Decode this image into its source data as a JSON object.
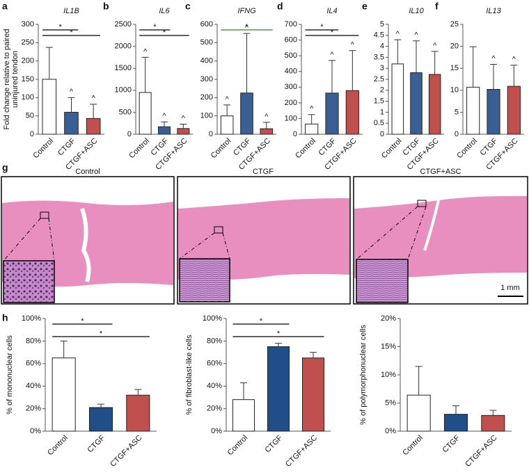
{
  "chart_data": [
    {
      "type": "bar",
      "panel": "a",
      "title": "IL1B",
      "ylabel": [
        "Fold change relative to paired",
        "uninjured tendon"
      ],
      "categories": [
        "Control",
        "CTGF",
        "CTGF+ASC"
      ],
      "values": [
        150,
        60,
        43
      ],
      "errors": [
        87,
        40,
        39
      ],
      "colors": [
        "#ffffff",
        "#3a5f94",
        "#c0504d"
      ],
      "markers": [
        null,
        "^",
        "^"
      ],
      "significance": [
        {
          "label": "*",
          "pair": [
            0,
            1
          ]
        },
        {
          "label": "*",
          "pair": [
            0,
            2
          ]
        }
      ],
      "ylim": [
        0,
        300
      ],
      "yticks": [
        0,
        50,
        100,
        150,
        200,
        250,
        300
      ]
    },
    {
      "type": "bar",
      "panel": "b",
      "title": "IL6",
      "categories": [
        "Control",
        "CTGF",
        "CTGF+ASC"
      ],
      "values": [
        950,
        170,
        130
      ],
      "errors": [
        800,
        110,
        100
      ],
      "colors": [
        "#ffffff",
        "#3a5f94",
        "#c0504d"
      ],
      "markers": [
        "^",
        "^",
        "^"
      ],
      "significance": [
        {
          "label": "*",
          "pair": [
            0,
            1
          ]
        },
        {
          "label": "*",
          "pair": [
            0,
            2
          ]
        }
      ],
      "ylim": [
        0,
        2500
      ],
      "yticks": [
        0,
        500,
        1000,
        1500,
        2000,
        2500
      ]
    },
    {
      "type": "bar",
      "panel": "c",
      "title": "IFNG",
      "categories": [
        "Control",
        "CTGF",
        "CTGF+ASC"
      ],
      "values": [
        100,
        225,
        30
      ],
      "errors": [
        60,
        325,
        35
      ],
      "colors": [
        "#ffffff",
        "#3a5f94",
        "#c0504d"
      ],
      "markers": [
        "^",
        "^",
        "^"
      ],
      "significance": [
        {
          "label": "*",
          "pair": [
            0,
            2
          ],
          "color": "#2e7d32"
        }
      ],
      "ylim": [
        0,
        600
      ],
      "yticks": [
        0,
        100,
        200,
        300,
        400,
        500,
        600
      ]
    },
    {
      "type": "bar",
      "panel": "d",
      "title": "IL4",
      "categories": [
        "Control",
        "CTGF",
        "CTGF+ASC"
      ],
      "values": [
        65,
        262,
        278
      ],
      "errors": [
        60,
        208,
        255
      ],
      "colors": [
        "#ffffff",
        "#3a5f94",
        "#c0504d"
      ],
      "markers": [
        "^",
        "^",
        "^"
      ],
      "significance": [
        {
          "label": "*",
          "pair": [
            0,
            1
          ]
        },
        {
          "label": "*",
          "pair": [
            0,
            2
          ]
        }
      ],
      "ylim": [
        0,
        700
      ],
      "yticks": [
        0,
        100,
        200,
        300,
        400,
        500,
        600,
        700
      ]
    },
    {
      "type": "bar",
      "panel": "e",
      "title": "IL10",
      "categories": [
        "Control",
        "CTGF",
        "CTGF+ASC"
      ],
      "values": [
        3.2,
        2.8,
        2.72
      ],
      "errors": [
        1.1,
        1.45,
        1.05
      ],
      "colors": [
        "#ffffff",
        "#3a5f94",
        "#c0504d"
      ],
      "markers": [
        "^",
        "^",
        "^"
      ],
      "ylim": [
        0,
        5
      ],
      "yticks": [
        0,
        0.5,
        1,
        1.5,
        2,
        2.5,
        3,
        3.5,
        4,
        4.5,
        5
      ]
    },
    {
      "type": "bar",
      "panel": "f",
      "title": "IL13",
      "categories": [
        "Control",
        "CTGF",
        "CTGF+ASC"
      ],
      "values": [
        10.7,
        10.2,
        10.9
      ],
      "errors": [
        9.2,
        5.7,
        4.8
      ],
      "colors": [
        "#ffffff",
        "#3a5f94",
        "#c0504d"
      ],
      "markers": [
        null,
        "^",
        "^"
      ],
      "ylim": [
        0,
        25
      ],
      "yticks": [
        0,
        5,
        10,
        15,
        20,
        25
      ]
    },
    {
      "type": "bar",
      "panel": "h",
      "ylabel": [
        "% of mononuclear cells"
      ],
      "categories": [
        "Control",
        "CTGF",
        "CTGF+ASC"
      ],
      "values": [
        65,
        21,
        32
      ],
      "errors": [
        15,
        3,
        5
      ],
      "colors": [
        "#ffffff",
        "#1f4e89",
        "#c0504d"
      ],
      "significance": [
        {
          "label": "*",
          "pair": [
            0,
            1
          ]
        },
        {
          "label": "*",
          "pair": [
            0,
            2
          ]
        }
      ],
      "ylim": [
        0,
        100
      ],
      "yticks": [
        {
          "value": 0,
          "label": "0%"
        },
        {
          "value": 20,
          "label": "20%"
        },
        {
          "value": 40,
          "label": "40%"
        },
        {
          "value": 60,
          "label": "60%"
        },
        {
          "value": 80,
          "label": "80%"
        },
        {
          "value": 100,
          "label": "100%"
        }
      ]
    },
    {
      "type": "bar",
      "ylabel": [
        "% of fibroblast-like cells"
      ],
      "categories": [
        "Control",
        "CTGF",
        "CTGF+ASC"
      ],
      "values": [
        28,
        75,
        65
      ],
      "errors": [
        15,
        3,
        5
      ],
      "colors": [
        "#ffffff",
        "#1f4e89",
        "#c0504d"
      ],
      "significance": [
        {
          "label": "*",
          "pair": [
            0,
            1
          ]
        },
        {
          "label": "*",
          "pair": [
            0,
            2
          ]
        }
      ],
      "ylim": [
        0,
        100
      ],
      "yticks": [
        {
          "value": 0,
          "label": "0%"
        },
        {
          "value": 20,
          "label": "20%"
        },
        {
          "value": 40,
          "label": "40%"
        },
        {
          "value": 60,
          "label": "60%"
        },
        {
          "value": 80,
          "label": "80%"
        },
        {
          "value": 100,
          "label": "100%"
        }
      ]
    },
    {
      "type": "bar",
      "ylabel": [
        "% of polymorphonuclear cells"
      ],
      "categories": [
        "Control",
        "CTGF",
        "CTGF+ASC"
      ],
      "values": [
        6.4,
        3.0,
        2.8
      ],
      "errors": [
        5.1,
        1.5,
        0.9
      ],
      "colors": [
        "#ffffff",
        "#1f4e89",
        "#c0504d"
      ],
      "ylim": [
        0,
        20
      ],
      "yticks": [
        {
          "value": 0,
          "label": "0%"
        },
        {
          "value": 5,
          "label": "5%"
        },
        {
          "value": 10,
          "label": "10%"
        },
        {
          "value": 15,
          "label": "15%"
        },
        {
          "value": 20,
          "label": "20%"
        }
      ]
    }
  ],
  "histology": {
    "panel": "g",
    "titles": [
      "Control",
      "CTGF",
      "CTGF+ASC"
    ],
    "scale_bar": "1 mm"
  }
}
